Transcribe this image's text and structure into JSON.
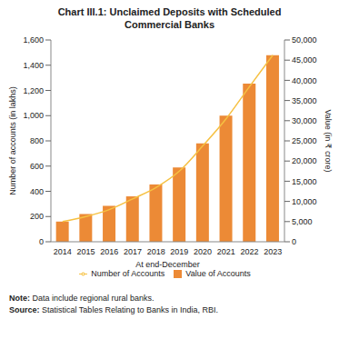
{
  "chart_data": {
    "type": "bar",
    "title": "Chart III.1: Unclaimed Deposits with Scheduled Commercial Banks",
    "x_label": "At end-December",
    "y_label": "Number of accounts (in lakhs)",
    "y2_label": "Value (in ₹ crore)",
    "categories": [
      "2014",
      "2015",
      "2016",
      "2017",
      "2018",
      "2019",
      "2020",
      "2021",
      "2022",
      "2023"
    ],
    "series": [
      {
        "name": "Value of Accounts",
        "type": "bar",
        "axis": "y2",
        "color": "#ec8a36",
        "values": [
          5000,
          6875,
          8900,
          11250,
          14200,
          18400,
          24400,
          31250,
          39200,
          46250
        ]
      },
      {
        "name": "Number of Accounts",
        "type": "line",
        "color": "#f6c142",
        "values": [
          160,
          200,
          255,
          340,
          430,
          560,
          760,
          975,
          1230,
          1480
        ]
      }
    ],
    "ylim": [
      0,
      1600
    ],
    "yticks": [
      0,
      200,
      400,
      600,
      800,
      {
        "value": 1000,
        "label": "1,000"
      },
      {
        "value": 1200,
        "label": "1,200"
      },
      {
        "value": 1400,
        "label": "1,400"
      },
      {
        "value": 1600,
        "label": "1,600"
      }
    ],
    "y2lim": [
      0,
      50000
    ],
    "y2ticks": [
      0,
      {
        "value": 5000,
        "label": "5,000"
      },
      {
        "value": 10000,
        "label": "10,000"
      },
      {
        "value": 15000,
        "label": "15,000"
      },
      {
        "value": 20000,
        "label": "20,000"
      },
      {
        "value": 25000,
        "label": "25,000"
      },
      {
        "value": 30000,
        "label": "30,000"
      },
      {
        "value": 35000,
        "label": "35,000"
      },
      {
        "value": 40000,
        "label": "40,000"
      },
      {
        "value": 45000,
        "label": "45,000"
      },
      {
        "value": 50000,
        "label": "50,000"
      }
    ],
    "legend": "bottom",
    "note": "Note: Data include regional rural banks.",
    "source": "Source: Statistical Tables Relating to Banks in India, RBI."
  }
}
